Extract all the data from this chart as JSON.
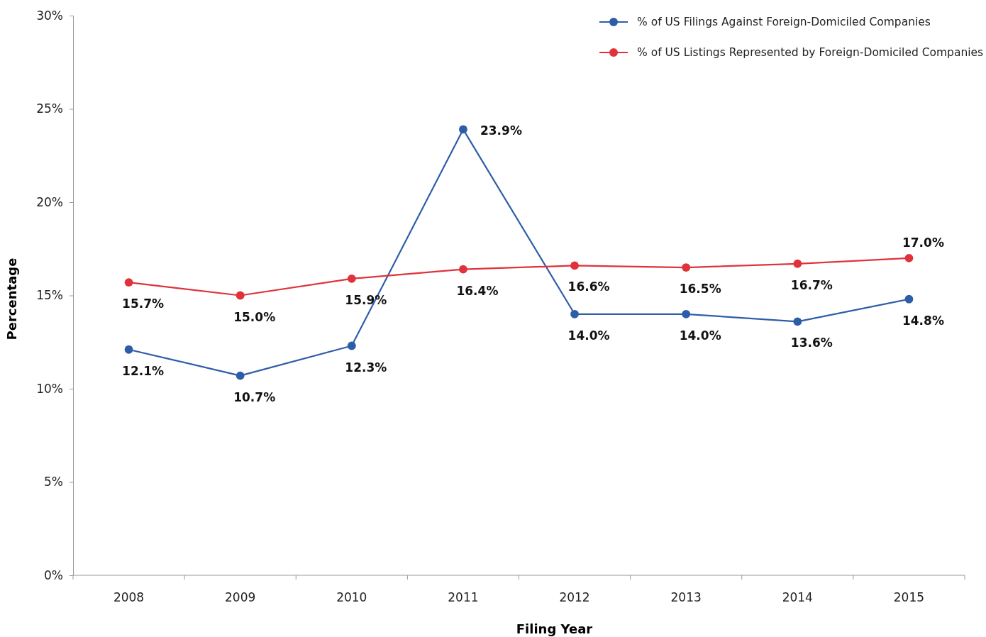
{
  "chart_data": {
    "type": "line",
    "xlabel": "Filing Year",
    "ylabel": "Percentage",
    "categories": [
      "2008",
      "2009",
      "2010",
      "2011",
      "2012",
      "2013",
      "2014",
      "2015"
    ],
    "ylim": [
      0,
      30
    ],
    "yticks": [
      {
        "value": 0,
        "label": "0%"
      },
      {
        "value": 5,
        "label": "5%"
      },
      {
        "value": 10,
        "label": "10%"
      },
      {
        "value": 15,
        "label": "15%"
      },
      {
        "value": 20,
        "label": "20%"
      },
      {
        "value": 25,
        "label": "25%"
      },
      {
        "value": 30,
        "label": "30%"
      }
    ],
    "grid": false,
    "legend": "top right",
    "marker": "circle",
    "line_style": "solid",
    "series": [
      {
        "name": "% of US Filings Against Foreign-Domiciled Companies",
        "color": "#2e5da8",
        "values": [
          12.1,
          10.7,
          12.3,
          23.9,
          14.0,
          14.0,
          13.6,
          14.8
        ],
        "value_labels": [
          "12.1%",
          "10.7%",
          "12.3%",
          "23.9%",
          "14.0%",
          "14.0%",
          "13.6%",
          "14.8%"
        ]
      },
      {
        "name": "% of US Listings Represented by Foreign-Domiciled Companies",
        "color": "#e0323a",
        "values": [
          15.7,
          15.0,
          15.9,
          16.4,
          16.6,
          16.5,
          16.7,
          17.0
        ],
        "value_labels": [
          "15.7%",
          "15.0%",
          "15.9%",
          "16.4%",
          "16.6%",
          "16.5%",
          "16.7%",
          "17.0%"
        ]
      }
    ]
  }
}
